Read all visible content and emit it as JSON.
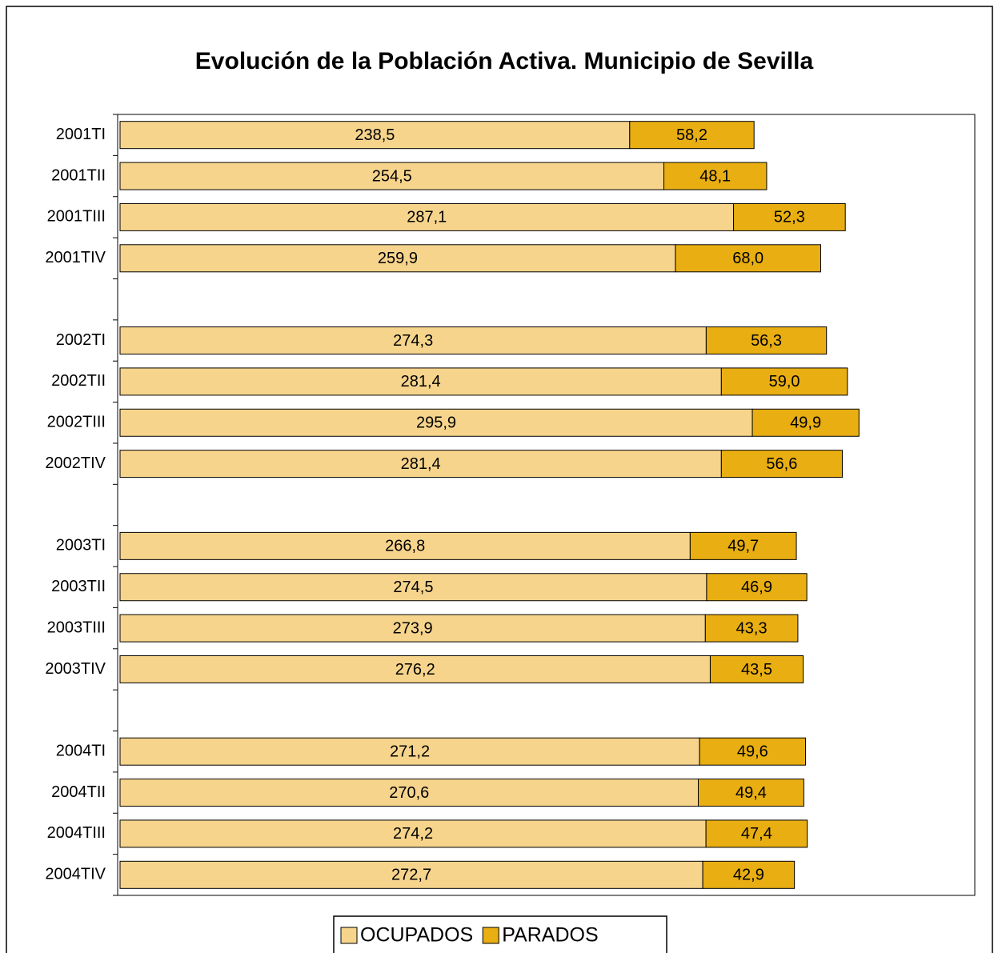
{
  "chart_data": {
    "type": "stacked-bar-horizontal",
    "title": "Evolución de la Población Activa. Municipio de Sevilla",
    "categories": [
      "2001TI",
      "2001TII",
      "2001TIII",
      "2001TIV",
      null,
      "2002TI",
      "2002TII",
      "2002TIII",
      "2002TIV",
      null,
      "2003TI",
      "2003TII",
      "2003TIII",
      "2003TIV",
      null,
      "2004TI",
      "2004TII",
      "2004TIII",
      "2004TIV"
    ],
    "series": [
      {
        "name": "OCUPADOS",
        "color": "#f6d48c",
        "values": [
          238.5,
          254.5,
          287.1,
          259.9,
          null,
          274.3,
          281.4,
          295.9,
          281.4,
          null,
          266.8,
          274.5,
          273.9,
          276.2,
          null,
          271.2,
          270.6,
          274.2,
          272.7
        ],
        "value_labels": [
          "238,5",
          "254,5",
          "287,1",
          "259,9",
          null,
          "274,3",
          "281,4",
          "295,9",
          "281,4",
          null,
          "266,8",
          "274,5",
          "273,9",
          "276,2",
          null,
          "271,2",
          "270,6",
          "274,2",
          "272,7"
        ]
      },
      {
        "name": "PARADOS",
        "color": "#e8ae12",
        "values": [
          58.2,
          48.1,
          52.3,
          68.0,
          null,
          56.3,
          59.0,
          49.9,
          56.6,
          null,
          49.7,
          46.9,
          43.3,
          43.5,
          null,
          49.6,
          49.4,
          47.4,
          42.9
        ],
        "value_labels": [
          "58,2",
          "48,1",
          "52,3",
          "68,0",
          null,
          "56,3",
          "59,0",
          "49,9",
          "56,6",
          null,
          "49,7",
          "46,9",
          "43,3",
          "43,5",
          null,
          "49,6",
          "49,4",
          "47,4",
          "42,9"
        ]
      }
    ],
    "xlim": [
      0,
      400
    ],
    "legend": "bottom"
  }
}
